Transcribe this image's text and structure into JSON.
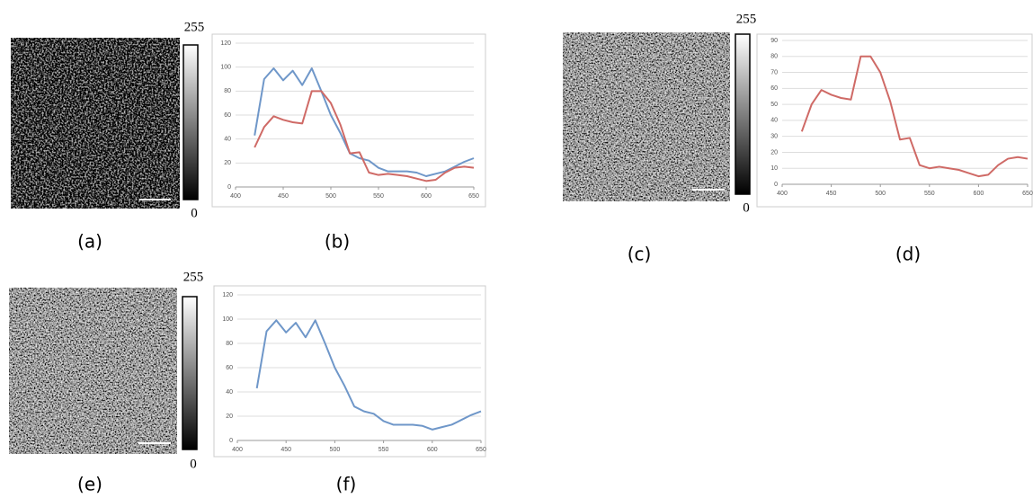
{
  "chart_data": [
    {
      "type": "line",
      "x": [
        420,
        430,
        440,
        450,
        460,
        470,
        480,
        490,
        500,
        510,
        520,
        530,
        540,
        550,
        560,
        570,
        580,
        590,
        600,
        610,
        620,
        630,
        640,
        650
      ],
      "series": [
        {
          "color": "#6f97c9",
          "values": [
            43,
            90,
            99,
            89,
            97,
            85,
            99,
            80,
            60,
            45,
            28,
            24,
            22,
            16,
            13,
            13,
            13,
            12,
            9,
            11,
            13,
            17,
            21,
            24
          ]
        },
        {
          "color": "#cf6a66",
          "values": [
            33,
            50,
            59,
            56,
            54,
            53,
            80,
            80,
            70,
            52,
            28,
            29,
            12,
            10,
            11,
            10,
            9,
            7,
            5,
            6,
            12,
            16,
            17,
            16
          ]
        }
      ],
      "xlim": [
        400,
        650
      ],
      "xticks": [
        400,
        450,
        500,
        550,
        600,
        650
      ],
      "ylim": [
        0,
        120
      ],
      "yticks": [
        0,
        20,
        40,
        60,
        80,
        100,
        120
      ],
      "grid": true
    },
    {
      "type": "line",
      "x": [
        420,
        430,
        440,
        450,
        460,
        470,
        480,
        490,
        500,
        510,
        520,
        530,
        540,
        550,
        560,
        570,
        580,
        590,
        600,
        610,
        620,
        630,
        640,
        650
      ],
      "series": [
        {
          "color": "#cf6a66",
          "values": [
            33,
            50,
            59,
            56,
            54,
            53,
            80,
            80,
            70,
            52,
            28,
            29,
            12,
            10,
            11,
            10,
            9,
            7,
            5,
            6,
            12,
            16,
            17,
            16
          ]
        }
      ],
      "xlim": [
        400,
        650
      ],
      "xticks": [
        400,
        450,
        500,
        550,
        600,
        650
      ],
      "ylim": [
        0,
        90
      ],
      "yticks": [
        0,
        10,
        20,
        30,
        40,
        50,
        60,
        70,
        80,
        90
      ],
      "grid": true
    },
    {
      "type": "line",
      "x": [
        420,
        430,
        440,
        450,
        460,
        470,
        480,
        490,
        500,
        510,
        520,
        530,
        540,
        550,
        560,
        570,
        580,
        590,
        600,
        610,
        620,
        630,
        640,
        650
      ],
      "series": [
        {
          "color": "#6f97c9",
          "values": [
            43,
            90,
            99,
            89,
            97,
            85,
            99,
            80,
            60,
            45,
            28,
            24,
            22,
            16,
            13,
            13,
            13,
            12,
            9,
            11,
            13,
            17,
            21,
            24
          ]
        }
      ],
      "xlim": [
        400,
        650
      ],
      "xticks": [
        400,
        450,
        500,
        550,
        600,
        650
      ],
      "ylim": [
        0,
        120
      ],
      "yticks": [
        0,
        20,
        40,
        60,
        80,
        100,
        120
      ],
      "grid": true
    }
  ],
  "panel_labels": [
    "(a)",
    "(b)",
    "(c)",
    "(d)",
    "(e)",
    "(f)"
  ],
  "colorbars": [
    {
      "max": 255,
      "min": 0
    },
    {
      "max": 255,
      "min": 0
    },
    {
      "max": 255,
      "min": 0
    }
  ]
}
